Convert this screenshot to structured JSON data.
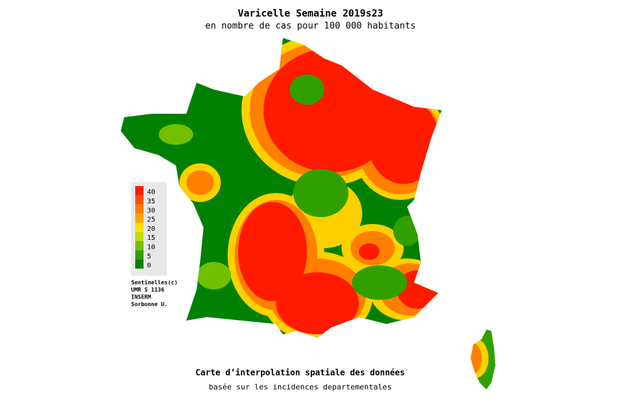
{
  "title": "Varicelle Semaine 2019s23",
  "subtitle": "en nombre de cas pour 100 000 habitants",
  "legend": {
    "ticks": [
      40,
      35,
      30,
      25,
      20,
      15,
      10,
      5,
      0
    ],
    "colors": [
      "#ff1a00",
      "#ff5000",
      "#ff8000",
      "#ffa800",
      "#ffe000",
      "#c0dc00",
      "#70c000",
      "#30a000",
      "#008000"
    ]
  },
  "credits": [
    "Sentinelles(c)",
    "UMR S 1136",
    "INSERM",
    "Sorbonne U."
  ],
  "footer": {
    "title": "Carte d’interpolation spatiale des données",
    "subtitle": "basée sur les incidences departementales"
  }
}
